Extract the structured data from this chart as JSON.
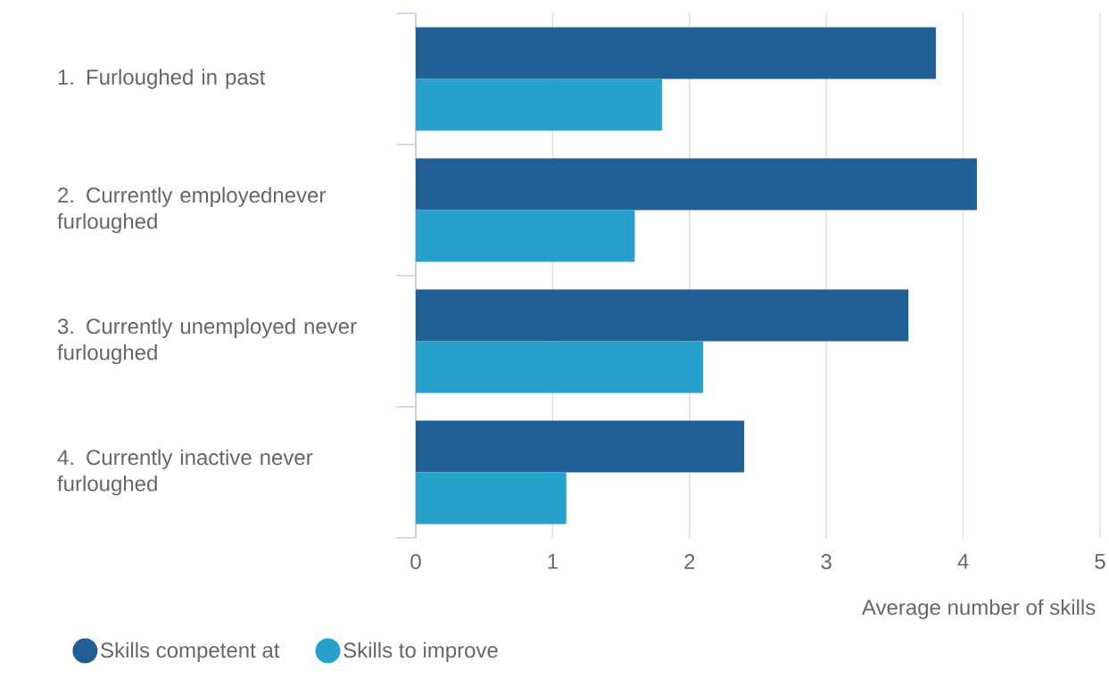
{
  "chart_data": {
    "type": "bar",
    "orientation": "horizontal",
    "categories": [
      "1. Furloughed in past",
      "2. Currently employednever furloughed",
      "3. Currently unemployed never furloughed",
      "4. Currently inactive never furloughed"
    ],
    "series": [
      {
        "name": "Skills competent at",
        "color": "#1f5f94",
        "values": [
          3.8,
          4.1,
          3.6,
          2.4
        ]
      },
      {
        "name": "Skills to improve",
        "color": "#27a0cc",
        "values": [
          1.8,
          1.6,
          2.1,
          1.1
        ]
      }
    ],
    "xlabel": "Average number of skills",
    "xlim": [
      0,
      5
    ],
    "xticks": [
      0,
      1,
      2,
      3,
      4,
      5
    ],
    "grid": "x",
    "legend": "bottom left"
  }
}
